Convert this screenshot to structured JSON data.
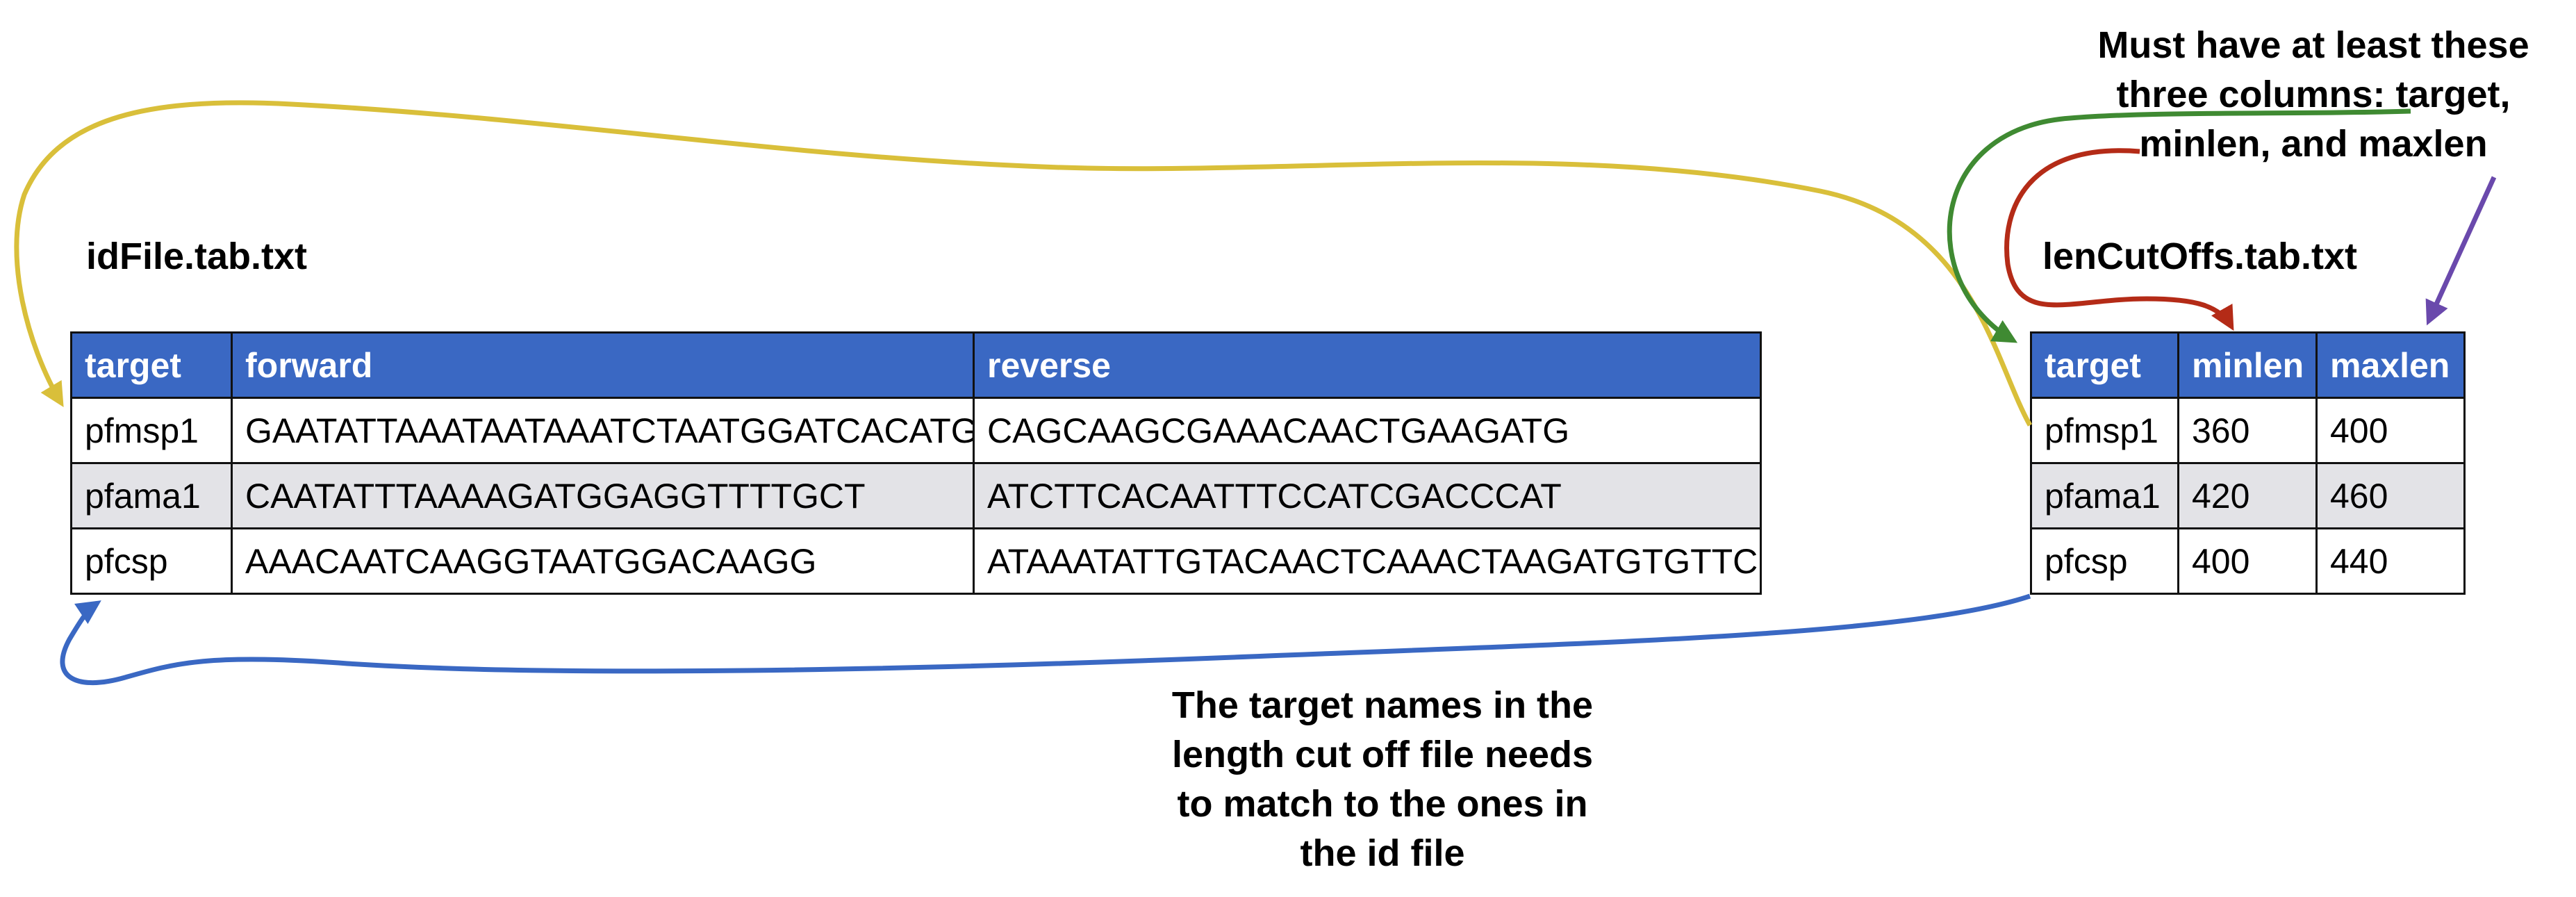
{
  "id_file": {
    "title": "idFile.tab.txt",
    "headers": [
      "target",
      "forward",
      "reverse"
    ],
    "rows": [
      [
        "pfmsp1",
        "GAATATTAAATAATAAATCTAATGGATCACATG",
        "CAGCAAGCGAAACAACTGAAGATG"
      ],
      [
        "pfama1",
        "CAATATTTAAAAGATGGAGGTTTTGCT",
        "ATCTTCACAATTTCCATCGACCCAT"
      ],
      [
        "pfcsp",
        "AAACAATCAAGGTAATGGACAAGG",
        "ATAAATATTGTACAACTCAAACTAAGATGTGTTC"
      ]
    ]
  },
  "len_file": {
    "title": "lenCutOffs.tab.txt",
    "headers": [
      "target",
      "minlen",
      "maxlen"
    ],
    "rows": [
      [
        "pfmsp1",
        "360",
        "400"
      ],
      [
        "pfama1",
        "420",
        "460"
      ],
      [
        "pfcsp",
        "400",
        "440"
      ]
    ]
  },
  "notes": {
    "columns_note": [
      "Must have at least these",
      "three columns: target,",
      "minlen, and maxlen"
    ],
    "match_note": [
      "The target names in the",
      "length cut off file needs",
      "to match to the ones in",
      "the id file"
    ]
  },
  "colors": {
    "header_bg": "#3a68c3",
    "stripe_bg": "#e3e3e7",
    "arrow_yellow": "#d9bf3a",
    "arrow_green": "#3f8a32",
    "arrow_red": "#b42b17",
    "arrow_purple": "#6a49ac",
    "arrow_blue": "#3a68c3"
  }
}
